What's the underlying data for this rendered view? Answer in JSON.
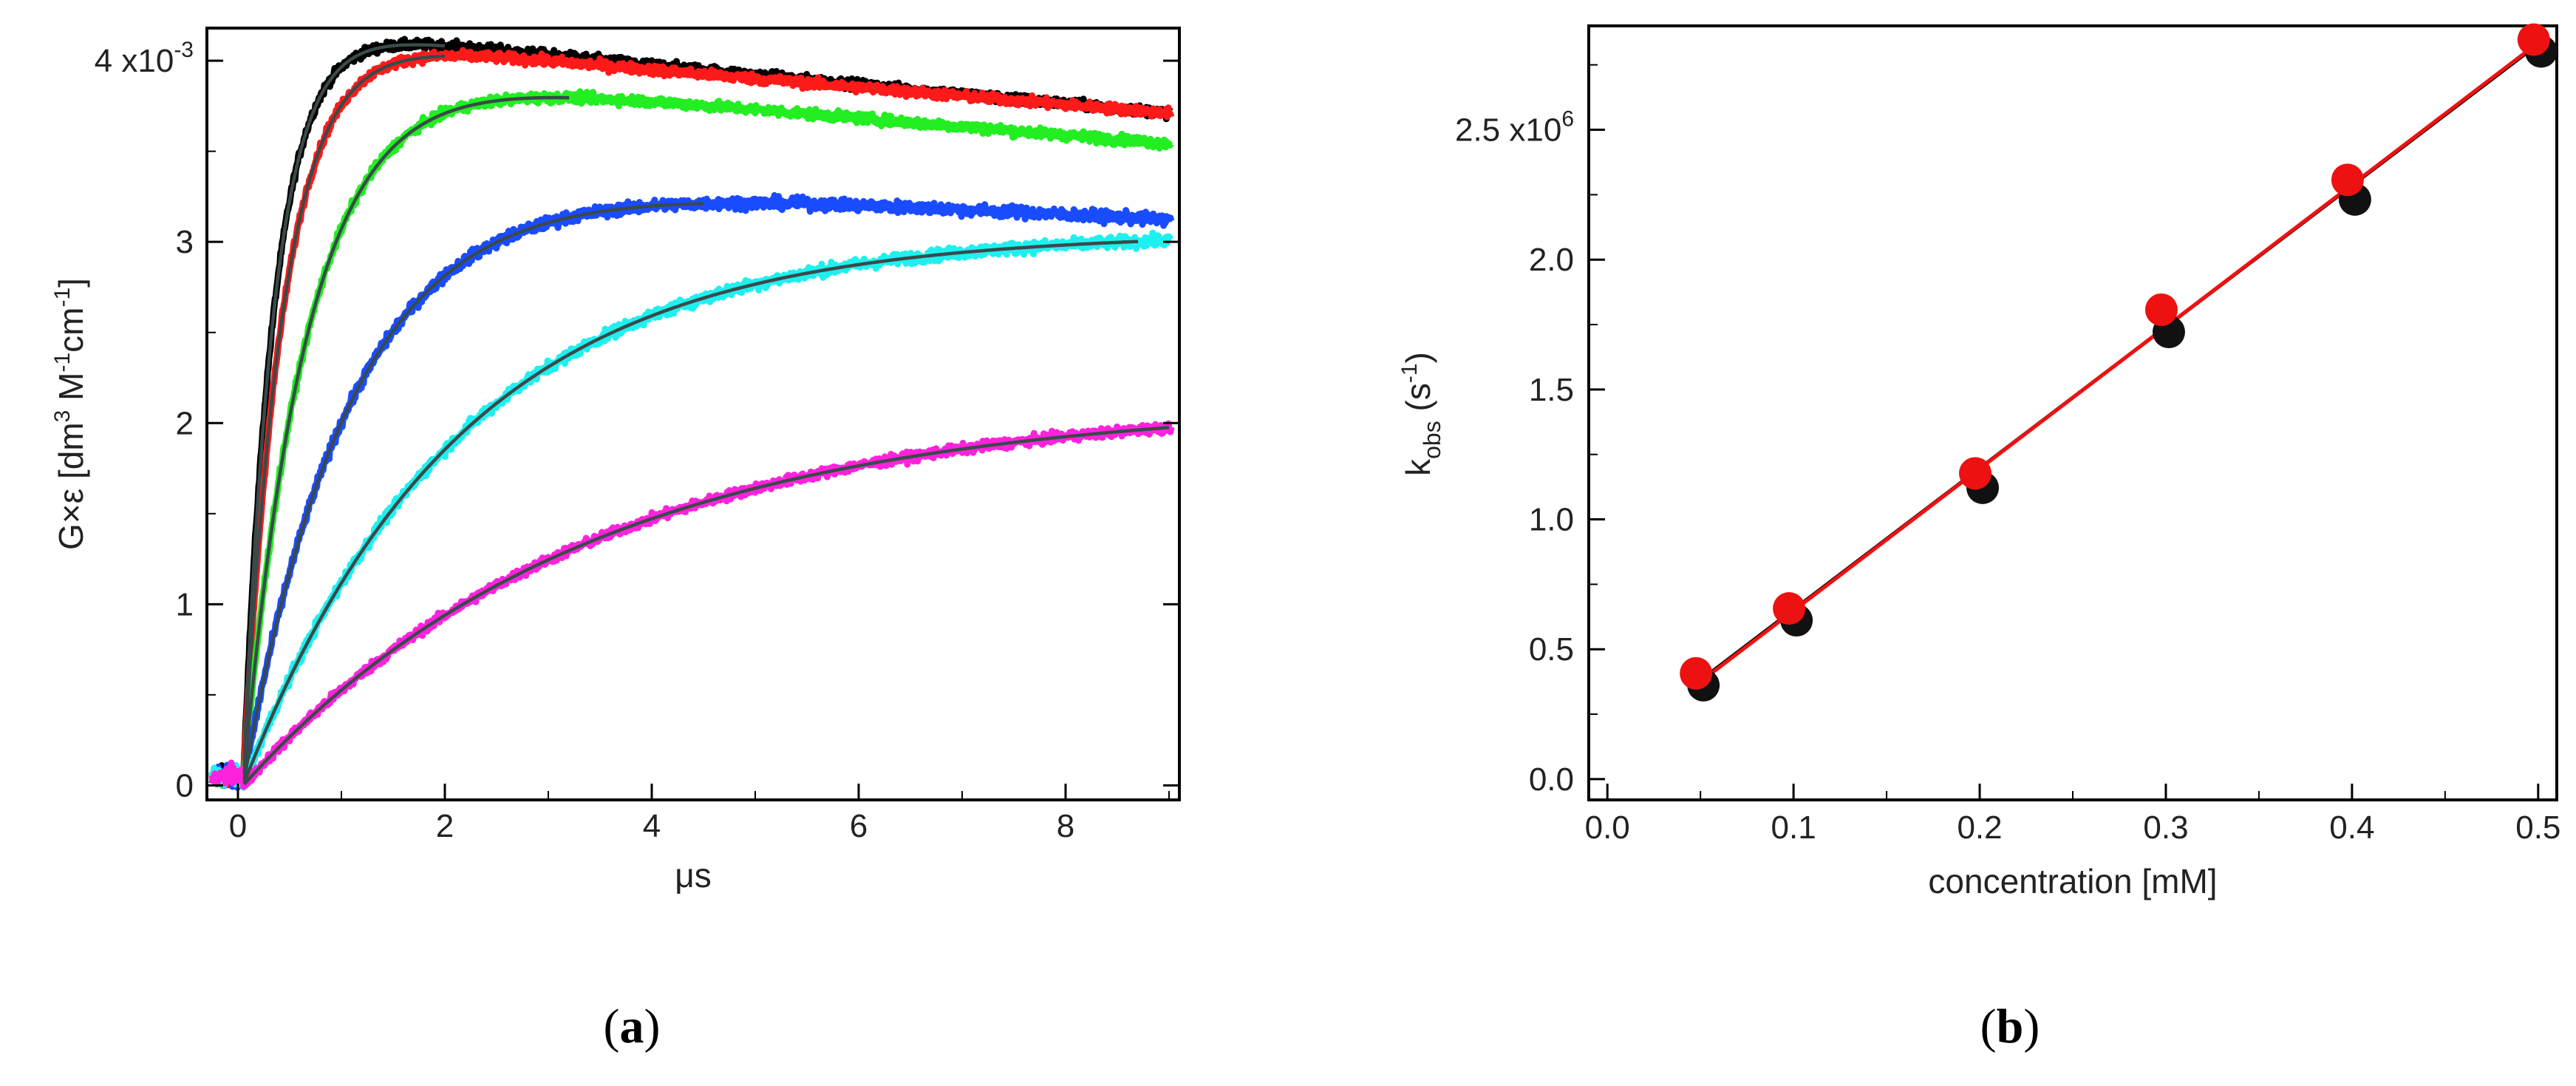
{
  "chart_data": [
    {
      "type": "line",
      "panel_label": "(a)",
      "panel_paren_open": "(",
      "panel_letter": "a",
      "panel_paren_close": ")",
      "xlabel": "μs",
      "ylabel_main": "G×ε [dm",
      "ylabel_sup1": "3",
      "ylabel_mid": " M",
      "ylabel_sup2": "-1",
      "ylabel_cm": "cm",
      "ylabel_sup3": "-1",
      "ylabel_end": "]",
      "xlim": [
        -0.3,
        9.1
      ],
      "ylim": [
        -0.08,
        4.18
      ],
      "x_ticks": [
        0,
        2,
        4,
        6,
        8
      ],
      "x_tick_labels": [
        "0",
        "2",
        "4",
        "6",
        "8"
      ],
      "y_ticks": [
        0,
        1,
        2,
        3
      ],
      "y_tick_labels": [
        "0",
        "1",
        "2",
        "3"
      ],
      "y_top_tick": {
        "value": 4,
        "label": "4 x10",
        "exponent": "-3"
      },
      "series": [
        {
          "name": "black",
          "color": "#000000",
          "A": 4.2,
          "k": 3.3,
          "decay": 0.0138,
          "noise": 0.025,
          "fit_end": 2.0
        },
        {
          "name": "red",
          "color": "#ff1a1a",
          "A": 4.15,
          "k": 2.6,
          "decay": 0.0125,
          "noise": 0.025,
          "fit_end": 2.0
        },
        {
          "name": "green",
          "color": "#22ee22",
          "A": 3.98,
          "k": 1.6,
          "decay": 0.013,
          "noise": 0.025,
          "fit_end": 3.2
        },
        {
          "name": "blue",
          "color": "#1a4cff",
          "A": 3.4,
          "k": 0.95,
          "decay": 0.0095,
          "noise": 0.03,
          "fit_end": 4.5
        },
        {
          "name": "cyan",
          "color": "#1ef0f0",
          "A": 3.05,
          "k": 0.48,
          "decay": 0.0,
          "noise": 0.03,
          "fit_end": 8.7
        },
        {
          "name": "magenta",
          "color": "#ff22dd",
          "A": 2.12,
          "k": 0.3,
          "decay": 0.0,
          "noise": 0.025,
          "fit_end": 9.0
        }
      ],
      "fit_color": "#3a4a4a"
    },
    {
      "type": "scatter",
      "panel_label": "(b)",
      "panel_paren_open": "(",
      "panel_letter": "b",
      "panel_paren_close": ")",
      "xlabel": "concentration [mM]",
      "ylabel_main": "k",
      "ylabel_sub": "obs",
      "ylabel_units": " (s",
      "ylabel_sup": "-1",
      "ylabel_close": ")",
      "xlim": [
        -0.01,
        0.51
      ],
      "ylim": [
        -0.08,
        2.9
      ],
      "x_ticks": [
        0.0,
        0.1,
        0.2,
        0.3,
        0.4,
        0.5
      ],
      "x_tick_labels": [
        "0.0",
        "0.1",
        "0.2",
        "0.3",
        "0.4",
        "0.5"
      ],
      "y_ticks": [
        0.0,
        0.5,
        1.0,
        1.5,
        2.0
      ],
      "y_tick_labels": [
        "0.0",
        "0.5",
        "1.0",
        "1.5",
        "2.0"
      ],
      "y_top_tick": {
        "value": 2.5,
        "label": "2.5 x10",
        "exponent": "6"
      },
      "y_scale_exponent": 6,
      "series": [
        {
          "name": "black points",
          "color": "#111111",
          "x": [
            0.05,
            0.1,
            0.2,
            0.3,
            0.4,
            0.5
          ],
          "y": [
            0.39,
            0.64,
            1.15,
            1.75,
            2.26,
            2.83
          ]
        },
        {
          "name": "red points",
          "color": "#ee1111",
          "x": [
            0.05,
            0.1,
            0.2,
            0.3,
            0.4,
            0.5
          ],
          "y": [
            0.39,
            0.64,
            1.16,
            1.79,
            2.29,
            2.83
          ]
        }
      ],
      "fits": [
        {
          "name": "black fit",
          "color": "#000000",
          "x": [
            0.05,
            0.5
          ],
          "y": [
            0.38,
            2.83
          ]
        },
        {
          "name": "red fit",
          "color": "#ee1111",
          "x": [
            0.05,
            0.5
          ],
          "y": [
            0.375,
            2.835
          ]
        }
      ]
    }
  ]
}
